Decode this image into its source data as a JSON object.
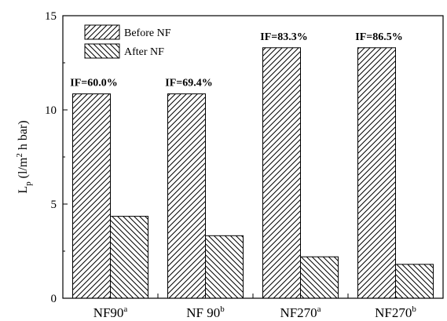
{
  "chart_data": {
    "type": "bar",
    "categories": [
      {
        "base": "NF90",
        "sup": "a"
      },
      {
        "base": "NF 90",
        "sup": "b"
      },
      {
        "base": "NF270",
        "sup": "a"
      },
      {
        "base": "NF270",
        "sup": "b"
      }
    ],
    "series": [
      {
        "name": "Before NF",
        "pattern": "hatch-right",
        "values": [
          10.85,
          10.85,
          13.3,
          13.3
        ]
      },
      {
        "name": "After NF",
        "pattern": "hatch-left",
        "values": [
          4.35,
          3.32,
          2.2,
          1.8
        ]
      }
    ],
    "annotations": [
      "IF=60.0%",
      "IF=69.4%",
      "IF=83.3%",
      "IF=86.5%"
    ],
    "ylabel": {
      "main": "L",
      "sub": "p",
      "rest": " (l/m",
      "sup": "2",
      "end": " h bar)"
    },
    "xlabel": "",
    "ylim": [
      0,
      15
    ],
    "yticks": [
      0,
      5,
      10,
      15
    ],
    "legend_position": "top-left",
    "grid": false,
    "colors": {
      "bar_fill": "#ffffff",
      "stroke": "#000000"
    }
  }
}
